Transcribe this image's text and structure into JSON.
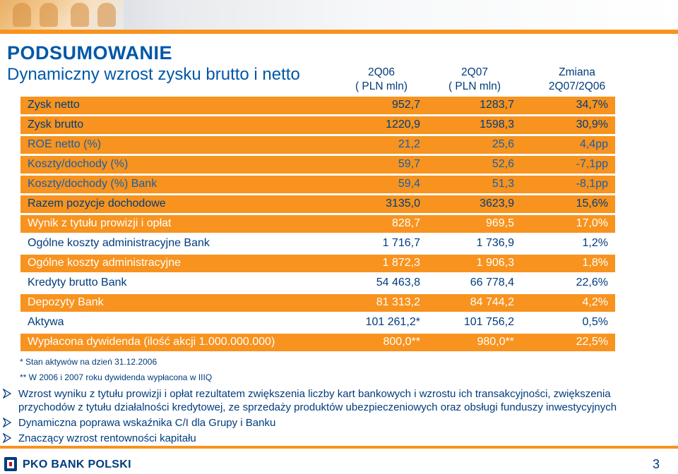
{
  "header": {
    "title": "PODSUMOWANIE",
    "subtitle": "Dynamiczny wzrost zysku brutto i netto"
  },
  "columns": [
    {
      "line1": "2Q06",
      "line2": "( PLN mln)"
    },
    {
      "line1": "2Q07",
      "line2": "( PLN mln)"
    },
    {
      "line1": "Zmiana",
      "line2": "2Q07/2Q06"
    }
  ],
  "rows": [
    {
      "label": "Zysk netto",
      "v1": "952,7",
      "v2": "1283,7",
      "v3": "34,7%"
    },
    {
      "label": "Zysk brutto",
      "v1": "1220,9",
      "v2": "1598,3",
      "v3": "30,9%"
    },
    {
      "label": "ROE  netto (%)",
      "v1": "21,2",
      "v2": "25,6",
      "v3": "4,4pp"
    },
    {
      "label": "Koszty/dochody  (%)",
      "v1": "59,7",
      "v2": "52,6",
      "v3": "-7,1pp"
    },
    {
      "label": "Koszty/dochody  (%) Bank",
      "v1": "59,4",
      "v2": "51,3",
      "v3": "-8,1pp"
    },
    {
      "label": "Razem pozycje dochodowe",
      "v1": "3135,0",
      "v2": "3623,9",
      "v3": "15,6%"
    },
    {
      "label": "Wynik z tytułu prowizji i opłat",
      "v1": "828,7",
      "v2": "969,5",
      "v3": "17,0%"
    },
    {
      "label": "Ogólne koszty administracyjne Bank",
      "v1": "1 716,7",
      "v2": "1 736,9",
      "v3": "1,2%"
    },
    {
      "label": "Ogólne koszty administracyjne",
      "v1": "1 872,3",
      "v2": "1 906,3",
      "v3": "1,8%"
    },
    {
      "label": "Kredyty brutto Bank",
      "v1": "54 463,8",
      "v2": "66 778,4",
      "v3": "22,6%"
    },
    {
      "label": "Depozyty Bank",
      "v1": "81 313,2",
      "v2": "84 744,2",
      "v3": "4,2%"
    },
    {
      "label": "Aktywa",
      "v1": "101 261,2*",
      "v2": "101 756,2",
      "v3": "0,5%"
    },
    {
      "label": "Wypłacona dywidenda (ilość akcji 1.000.000.000)",
      "v1": "800,0**",
      "v2": "980,0**",
      "v3": "22,5%"
    }
  ],
  "notes": [
    "* Stan aktywów na dzień 31.12.2006",
    "** W 2006 i 2007 roku dywidenda wypłacona w IIIQ"
  ],
  "bullets": [
    {
      "line1": "Wzrost wyniku z tytułu prowizji i opłat rezultatem zwiększenia liczby kart bankowych i wzrostu ich transakcyjności, zwiększenia",
      "line2": "przychodów z tytułu działalności kredytowej, ze sprzedaży produktów ubezpieczeniowych oraz obsługi funduszy inwestycyjnych"
    },
    {
      "line1": "Dynamiczna poprawa wskaźnika C/I dla Grupy i Banku"
    },
    {
      "line1": "Znaczący wzrost rentowności kapitału"
    }
  ],
  "footer": {
    "logo_text": "PKO BANK POLSKI",
    "page_number": "3"
  },
  "colors": {
    "orange": "#f7931e",
    "navy": "#003c7d",
    "title_blue": "#0057a8"
  }
}
